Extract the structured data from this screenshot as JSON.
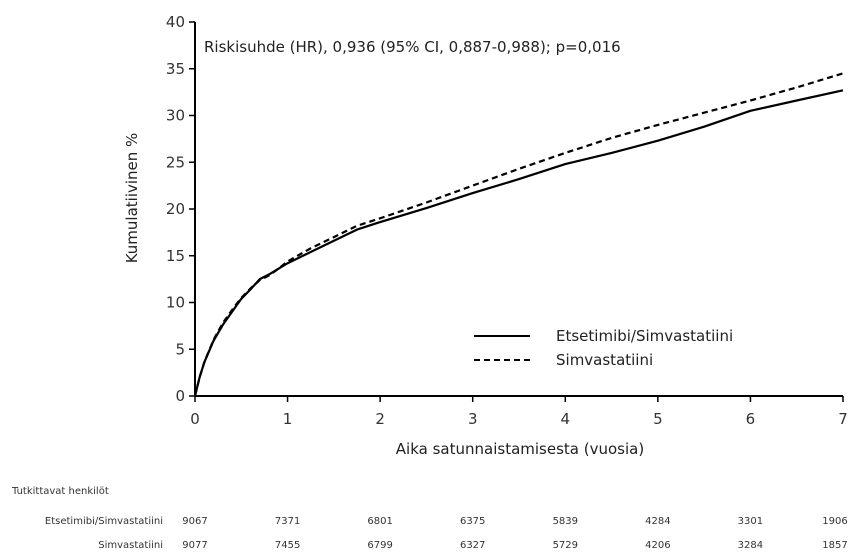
{
  "chart_data": {
    "type": "line",
    "title": "",
    "annotation": "Riskisuhde (HR), 0,936 (95% CI, 0,887-0,988); p=0,016",
    "xlabel": "Aika satunnaistamisesta (vuosia)",
    "ylabel": "Kumulatiivinen %",
    "xlim": [
      0,
      7
    ],
    "ylim": [
      0,
      40
    ],
    "xticks": [
      0,
      1,
      2,
      3,
      4,
      5,
      6,
      7
    ],
    "yticks": [
      0,
      5,
      10,
      15,
      20,
      25,
      30,
      35,
      40
    ],
    "grid": false,
    "legend_position": "bottom-right",
    "series": [
      {
        "name": "Etsetimibi/Simvastatiini",
        "style": "solid",
        "x": [
          0,
          0.05,
          0.1,
          0.2,
          0.3,
          0.4,
          0.5,
          0.6,
          0.7,
          0.8,
          0.9,
          1.0,
          1.25,
          1.5,
          1.75,
          2.0,
          2.5,
          3.0,
          3.5,
          4.0,
          4.5,
          5.0,
          5.5,
          6.0,
          6.5,
          7.0
        ],
        "y": [
          0,
          2.0,
          3.6,
          5.9,
          7.6,
          9.0,
          10.4,
          11.4,
          12.5,
          13.0,
          13.6,
          14.2,
          15.4,
          16.6,
          17.8,
          18.6,
          20.1,
          21.7,
          23.2,
          24.8,
          26.0,
          27.3,
          28.8,
          30.5,
          31.6,
          32.7
        ]
      },
      {
        "name": "Simvastatiini",
        "style": "dashed",
        "x": [
          0,
          0.05,
          0.1,
          0.2,
          0.3,
          0.4,
          0.5,
          0.6,
          0.7,
          0.8,
          0.9,
          1.0,
          1.25,
          1.5,
          1.75,
          2.0,
          2.5,
          3.0,
          3.5,
          4.0,
          4.5,
          5.0,
          5.5,
          6.0,
          6.5,
          7.0
        ],
        "y": [
          0,
          2.0,
          3.6,
          6.0,
          7.8,
          9.2,
          10.5,
          11.5,
          12.4,
          12.9,
          13.6,
          14.4,
          15.8,
          17.0,
          18.2,
          19.0,
          20.7,
          22.5,
          24.3,
          26.0,
          27.6,
          29.0,
          30.3,
          31.6,
          33.0,
          34.5
        ]
      }
    ]
  },
  "risk_table": {
    "title": "Tutkittavat henkilöt",
    "rows": [
      {
        "label": "Etsetimibi/Simvastatiini",
        "values": [
          "9067",
          "7371",
          "6801",
          "6375",
          "5839",
          "4284",
          "3301",
          "1906"
        ]
      },
      {
        "label": "Simvastatiini",
        "values": [
          "9077",
          "7455",
          "6799",
          "6327",
          "5729",
          "4206",
          "3284",
          "1857"
        ]
      }
    ]
  }
}
